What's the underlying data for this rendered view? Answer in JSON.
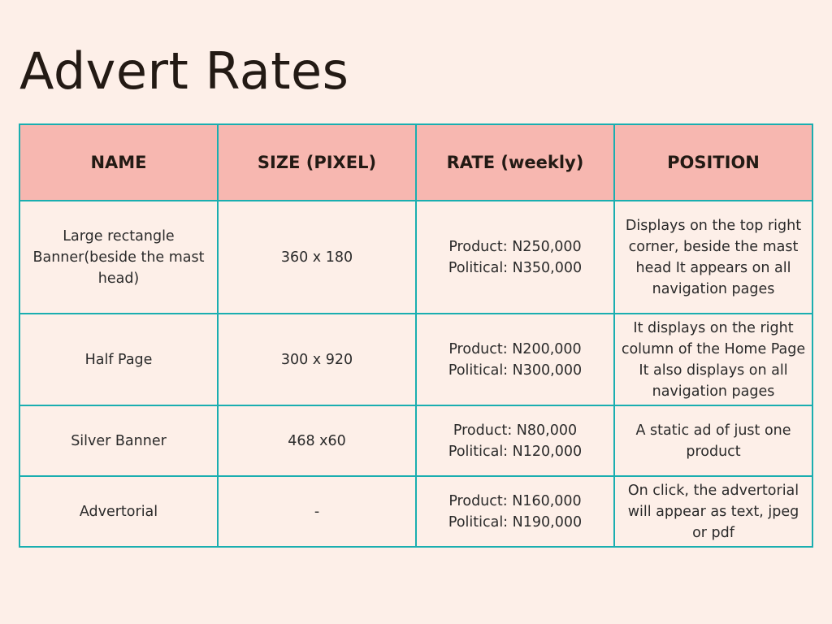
{
  "title": "Advert Rates",
  "table": {
    "headers": [
      "NAME",
      "SIZE (PIXEL)",
      "RATE (weekly)",
      "POSITION"
    ],
    "rows": [
      {
        "name": "Large rectangle Banner(beside the mast head)",
        "size": "360 x 180",
        "rate_product": "Product: N250,000",
        "rate_political": "Political: N350,000",
        "position": "Displays on the top right corner, beside the mast head It appears on all navigation pages"
      },
      {
        "name": "Half Page",
        "size": "300 x 920",
        "rate_product": "Product: N200,000",
        "rate_political": "Political: N300,000",
        "position": "It displays on the right column of the Home Page It also displays on all navigation pages"
      },
      {
        "name": "Silver Banner",
        "size": "468 x60",
        "rate_product": "Product: N80,000",
        "rate_political": "Political: N120,000",
        "position": "A static ad of just one product"
      },
      {
        "name": "Advertorial",
        "size": "-",
        "rate_product": "Product: N160,000",
        "rate_political": "Political: N190,000",
        "position": "On click, the advertorial will appear as text, jpeg or pdf"
      }
    ]
  },
  "colors": {
    "background": "#fdefe8",
    "header_fill": "#f7b7b0",
    "border": "#1aaeb0",
    "title_text": "#231a14"
  }
}
